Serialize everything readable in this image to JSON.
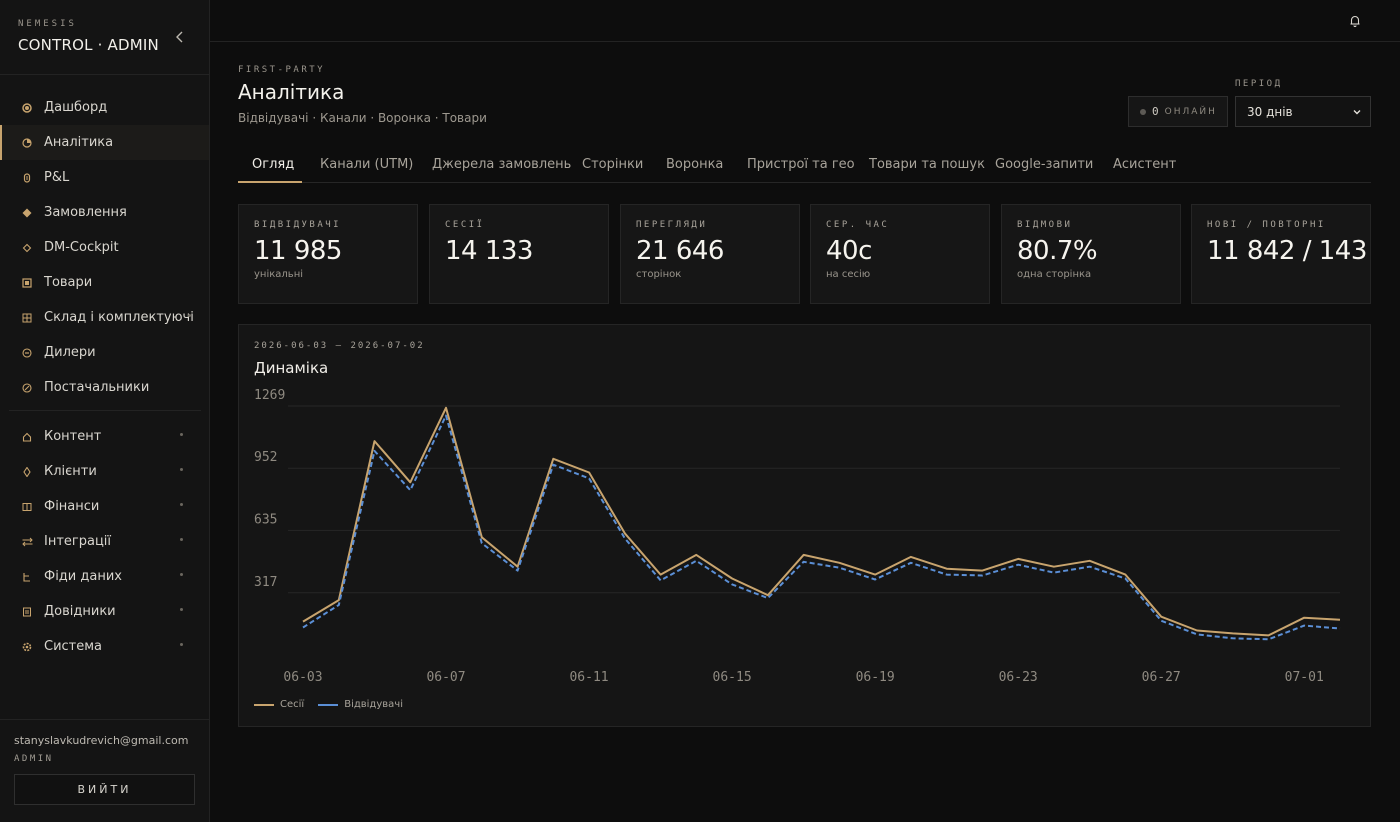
{
  "brand": {
    "small": "NEMESIS",
    "big": "CONTROL · ADMIN"
  },
  "sidebar": {
    "items": [
      {
        "label": "Дашборд",
        "icon": "dashboard-icon",
        "active": false
      },
      {
        "label": "Аналітика",
        "icon": "analytics-icon",
        "active": true
      },
      {
        "label": "P&L",
        "icon": "pnl-icon",
        "active": false
      },
      {
        "label": "Замовлення",
        "icon": "orders-icon",
        "active": false
      },
      {
        "label": "DM-Cockpit",
        "icon": "cockpit-icon",
        "active": false
      },
      {
        "label": "Товари",
        "icon": "products-icon",
        "active": false
      },
      {
        "label": "Склад і комплектуючі",
        "icon": "warehouse-icon",
        "active": false,
        "expandable": true
      },
      {
        "label": "Дилери",
        "icon": "dealers-icon",
        "active": false
      },
      {
        "label": "Постачальники",
        "icon": "suppliers-icon",
        "active": false
      }
    ],
    "groups": [
      {
        "label": "Контент",
        "icon": "content-icon"
      },
      {
        "label": "Клієнти",
        "icon": "clients-icon"
      },
      {
        "label": "Фінанси",
        "icon": "finance-icon"
      },
      {
        "label": "Інтеграції",
        "icon": "integrations-icon"
      },
      {
        "label": "Фіди даних",
        "icon": "feeds-icon"
      },
      {
        "label": "Довідники",
        "icon": "directories-icon"
      },
      {
        "label": "Система",
        "icon": "system-icon"
      }
    ],
    "user_email": "stanyslavkudrevich@gmail.com",
    "user_role": "ADMIN",
    "logout_label": "ВИЙТИ"
  },
  "header": {
    "eyebrow": "FIRST-PARTY",
    "title": "Аналітика",
    "subtitle": "Відвідувачі · Канали · Воронка · Товари",
    "online_count": "0",
    "online_label": "ОНЛАЙН",
    "period_label": "ПЕРІОД",
    "period_value": "30 днів"
  },
  "tabs": [
    "Огляд",
    "Канали (UTM)",
    "Джерела замовлень",
    "Сторінки",
    "Воронка",
    "Пристрої та гео",
    "Товари та пошук",
    "Google-запити",
    "Асистент"
  ],
  "kpis": [
    {
      "label": "ВІДВІДУВАЧІ",
      "value": "11 985",
      "sub": "унікальні"
    },
    {
      "label": "СЕСІЇ",
      "value": "14 133",
      "sub": ""
    },
    {
      "label": "ПЕРЕГЛЯДИ",
      "value": "21 646",
      "sub": "сторінок"
    },
    {
      "label": "СЕР. ЧАС",
      "value": "40с",
      "sub": "на сесію"
    },
    {
      "label": "ВІДМОВИ",
      "value": "80.7%",
      "sub": "одна сторінка"
    },
    {
      "label": "НОВІ / ПОВТОРНІ",
      "value": "11 842 / 143",
      "sub": ""
    }
  ],
  "colors": {
    "accent": "#c8a46e",
    "sessions": "#c8a46e",
    "visitors": "#5b8fd6"
  },
  "chart_data": {
    "type": "line",
    "range_label": "2026-06-03 — 2026-07-02",
    "title": "Динаміка",
    "x": [
      "06-03",
      "06-04",
      "06-05",
      "06-06",
      "06-07",
      "06-08",
      "06-09",
      "06-10",
      "06-11",
      "06-12",
      "06-13",
      "06-14",
      "06-15",
      "06-16",
      "06-17",
      "06-18",
      "06-19",
      "06-20",
      "06-21",
      "06-22",
      "06-23",
      "06-24",
      "06-25",
      "06-26",
      "06-27",
      "06-28",
      "06-29",
      "06-30",
      "07-01",
      "07-02"
    ],
    "x_ticks": [
      "06-03",
      "06-07",
      "06-11",
      "06-15",
      "06-19",
      "06-23",
      "06-27",
      "07-01"
    ],
    "y_ticks": [
      317,
      635,
      952,
      1269
    ],
    "ylim": [
      0,
      1269
    ],
    "grid": true,
    "legend": "bottom-left",
    "series": [
      {
        "name": "Сесії",
        "style": "solid",
        "values": [
          170,
          280,
          1090,
          880,
          1260,
          600,
          450,
          1000,
          930,
          620,
          410,
          510,
          390,
          305,
          510,
          470,
          410,
          500,
          440,
          430,
          490,
          450,
          480,
          410,
          195,
          125,
          110,
          100,
          190,
          180
        ]
      },
      {
        "name": "Відвідувачі",
        "style": "dashed",
        "values": [
          140,
          255,
          1040,
          840,
          1220,
          570,
          430,
          970,
          900,
          595,
          380,
          480,
          360,
          290,
          475,
          445,
          385,
          470,
          410,
          405,
          460,
          420,
          450,
          390,
          175,
          105,
          85,
          80,
          150,
          135
        ]
      }
    ]
  }
}
